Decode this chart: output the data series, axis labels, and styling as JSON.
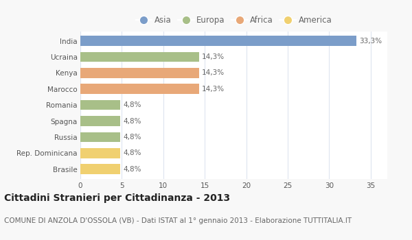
{
  "categories": [
    "India",
    "Ucraina",
    "Kenya",
    "Marocco",
    "Romania",
    "Spagna",
    "Russia",
    "Rep. Dominicana",
    "Brasile"
  ],
  "values": [
    33.3,
    14.3,
    14.3,
    14.3,
    4.8,
    4.8,
    4.8,
    4.8,
    4.8
  ],
  "labels": [
    "33,3%",
    "14,3%",
    "14,3%",
    "14,3%",
    "4,8%",
    "4,8%",
    "4,8%",
    "4,8%",
    "4,8%"
  ],
  "colors": [
    "#7b9dc9",
    "#a8bf88",
    "#e8a878",
    "#e8a878",
    "#a8bf88",
    "#a8bf88",
    "#a8bf88",
    "#f0d070",
    "#f0d070"
  ],
  "legend_labels": [
    "Asia",
    "Europa",
    "Africa",
    "America"
  ],
  "legend_colors": [
    "#7b9dc9",
    "#a8bf88",
    "#e8a878",
    "#f0d070"
  ],
  "xlim": [
    0,
    37
  ],
  "xticks": [
    0,
    5,
    10,
    15,
    20,
    25,
    30,
    35
  ],
  "title": "Cittadini Stranieri per Cittadinanza - 2013",
  "subtitle": "COMUNE DI ANZOLA D'OSSOLA (VB) - Dati ISTAT al 1° gennaio 2013 - Elaborazione TUTTITALIA.IT",
  "background_color": "#f8f8f8",
  "plot_bg_color": "#ffffff",
  "grid_color": "#dde4ef",
  "bar_height": 0.62,
  "title_fontsize": 10,
  "subtitle_fontsize": 7.5,
  "label_fontsize": 7.5,
  "tick_fontsize": 7.5,
  "legend_fontsize": 8.5
}
